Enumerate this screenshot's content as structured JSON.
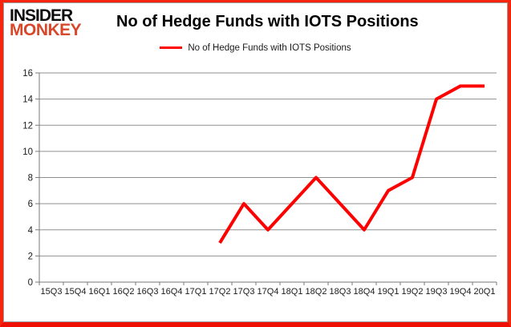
{
  "logo": {
    "line1": "INSIDER",
    "line2": "MONKEY"
  },
  "header": {
    "title": "No of Hedge Funds with IOTS Positions"
  },
  "legend": {
    "label": "No of Hedge Funds with IOTS Positions"
  },
  "colors": {
    "line": "#ff0000",
    "grid": "#8f8f8f",
    "axis": "#7a7a7a",
    "tick_label": "#1a1a1a",
    "frame_border": "#f8250e",
    "logo_black": "#0d0d0d",
    "logo_red": "#d9472b"
  },
  "chart_data": {
    "type": "line",
    "title": "No of Hedge Funds with IOTS Positions",
    "xlabel": "",
    "ylabel": "",
    "x": [
      "15Q3",
      "15Q4",
      "16Q1",
      "16Q2",
      "16Q3",
      "16Q4",
      "17Q1",
      "17Q2",
      "17Q3",
      "17Q4",
      "18Q1",
      "18Q2",
      "18Q3",
      "18Q4",
      "19Q1",
      "19Q2",
      "19Q3",
      "19Q4",
      "20Q1"
    ],
    "series": [
      {
        "name": "No of Hedge Funds with IOTS Positions",
        "color": "#ff0000",
        "values": [
          null,
          null,
          null,
          null,
          null,
          null,
          null,
          3,
          6,
          4,
          6,
          8,
          6,
          4,
          7,
          8,
          14,
          15,
          15
        ]
      }
    ],
    "ylim": [
      0,
      16
    ],
    "ytick_step": 2,
    "grid": "horizontal",
    "legend_position": "top-center"
  }
}
